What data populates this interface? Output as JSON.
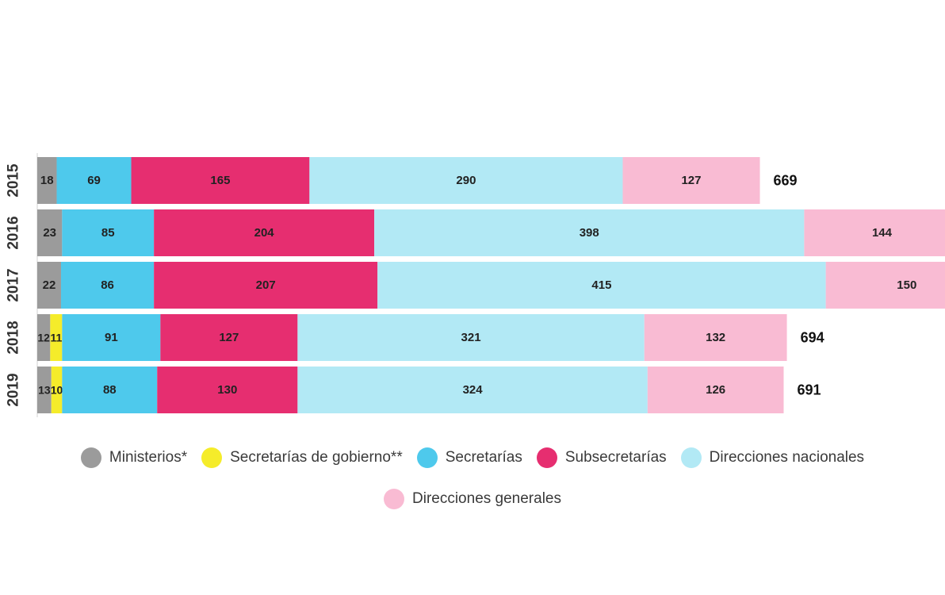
{
  "chart_data": {
    "type": "bar",
    "orientation": "horizontal",
    "stacked": true,
    "categories": [
      "2015",
      "2016",
      "2017",
      "2018",
      "2019"
    ],
    "series": [
      {
        "name": "Ministerios*",
        "color": "#9b9b9b",
        "values": [
          18,
          23,
          22,
          12,
          13
        ]
      },
      {
        "name": "Secretarías de gobierno**",
        "color": "#f5ec2a",
        "values": [
          0,
          0,
          0,
          11,
          10
        ]
      },
      {
        "name": "Secretarías",
        "color": "#4ec9ec",
        "values": [
          69,
          85,
          86,
          91,
          88
        ]
      },
      {
        "name": "Subsecretarías",
        "color": "#e62e70",
        "values": [
          165,
          204,
          207,
          127,
          130
        ]
      },
      {
        "name": "Direcciones nacionales",
        "color": "#b2e9f5",
        "values": [
          290,
          398,
          415,
          321,
          324
        ]
      },
      {
        "name": "Direcciones generales",
        "color": "#f9bbd3",
        "values": [
          127,
          144,
          150,
          132,
          126
        ]
      }
    ],
    "totals": [
      "669",
      "",
      "",
      "694",
      "691"
    ],
    "legend_position": "bottom",
    "grid": false
  },
  "legend_rows": [
    [
      0,
      1,
      2,
      3,
      4
    ],
    [
      5
    ]
  ]
}
